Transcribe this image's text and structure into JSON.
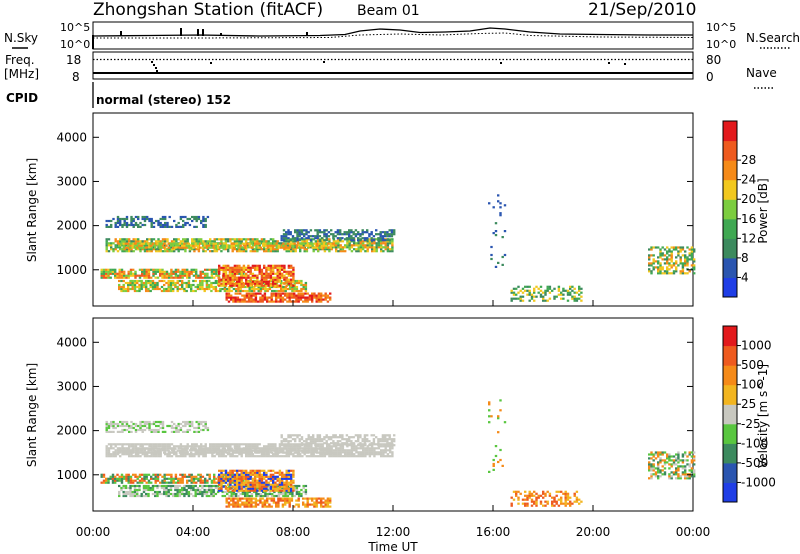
{
  "header": {
    "title": "Zhongshan Station (fitACF)",
    "beam": "Beam 01",
    "date": "21/Sep/2010"
  },
  "nsky_panel": {
    "left_label": "N.Sky",
    "right_label": "N.Search",
    "tick_hi": "10^5",
    "tick_lo": "10^0"
  },
  "freq_panel": {
    "left_label": "Freq.",
    "left_unit": "[MHz]",
    "left_hi": "18",
    "left_lo": "8",
    "right_label": "Nave",
    "right_hi": "80",
    "right_lo": "0"
  },
  "cpid": {
    "label": "CPID",
    "text": "normal (stereo) 152"
  },
  "x_axis": {
    "label": "Time UT",
    "ticks": [
      "00:00",
      "04:00",
      "08:00",
      "12:00",
      "16:00",
      "20:00",
      "00:00"
    ]
  },
  "chart_data": [
    {
      "type": "heatmap",
      "name": "power",
      "ylabel": "Slant Range [km]",
      "yticks": [
        "1000",
        "2000",
        "3000",
        "4000"
      ],
      "ylim": [
        180,
        4550
      ],
      "xlim_hours": [
        0,
        24
      ],
      "colorbar": {
        "label": "Power [dB]",
        "ticks": [
          "4",
          "8",
          "12",
          "16",
          "20",
          "24",
          "28"
        ],
        "colors": [
          "#1f3ee6",
          "#2a55b0",
          "#3c8a5e",
          "#3fa852",
          "#7ccd3f",
          "#f2c81e",
          "#f58a18",
          "#ee5a1e",
          "#e2191c"
        ]
      }
    },
    {
      "type": "heatmap",
      "name": "velocity",
      "ylabel": "Slant Range [km]",
      "yticks": [
        "1000",
        "2000",
        "3000",
        "4000"
      ],
      "ylim": [
        180,
        4550
      ],
      "xlim_hours": [
        0,
        24
      ],
      "colorbar": {
        "label": "Velocity [m s^-1]",
        "ticks": [
          "1000",
          "500",
          "100",
          "25",
          "-25",
          "-100",
          "-500",
          "-1000"
        ],
        "colors": [
          "#1f3ee6",
          "#2a55b0",
          "#3c8a5e",
          "#59c63f",
          "#c8c8c0",
          "#f2b520",
          "#f58a18",
          "#ee5a1e",
          "#e2191c"
        ]
      }
    }
  ]
}
